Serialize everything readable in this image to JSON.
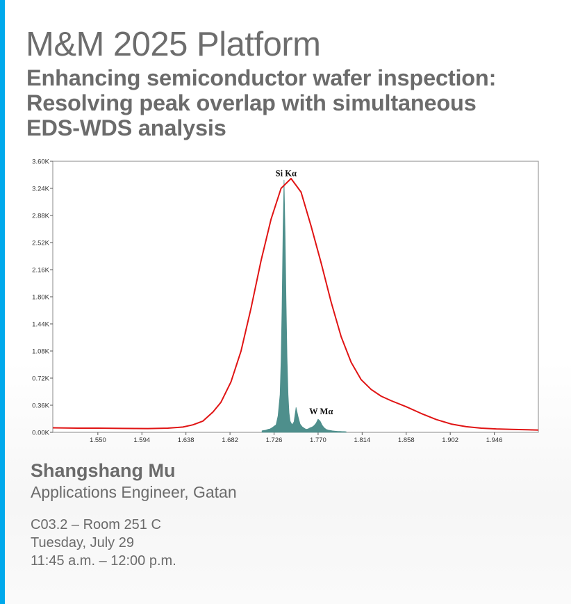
{
  "colors": {
    "accent_bar": "#00a9ec",
    "eds_curve": "#e01414",
    "wds_spectrum": "#4e8f8c",
    "text": "#6b6b6b"
  },
  "header": {
    "event_title": "M&M 2025 Platform",
    "talk_title_lines": [
      "Enhancing semiconductor wafer inspection:",
      "Resolving peak overlap with simultaneous",
      "EDS-WDS analysis"
    ]
  },
  "chart_data": {
    "type": "line",
    "title": "",
    "xlabel": "",
    "ylabel": "",
    "xlim": [
      1.505,
      1.99
    ],
    "ylim": [
      0,
      3600
    ],
    "x_ticks": [
      "1.550",
      "1.594",
      "1.638",
      "1.682",
      "1.726",
      "1.770",
      "1.814",
      "1.858",
      "1.902",
      "1.946"
    ],
    "x_tick_values": [
      1.55,
      1.594,
      1.638,
      1.682,
      1.726,
      1.77,
      1.814,
      1.858,
      1.902,
      1.946
    ],
    "y_ticks": [
      "0.00K",
      "0.36K",
      "0.72K",
      "1.08K",
      "1.44K",
      "1.80K",
      "2.16K",
      "2.52K",
      "2.88K",
      "3.24K",
      "3.60K"
    ],
    "y_tick_values": [
      0,
      360,
      720,
      1080,
      1440,
      1800,
      2160,
      2520,
      2880,
      3240,
      3600
    ],
    "grid": false,
    "legend": "none",
    "annotations": [
      {
        "text": "Si Kα",
        "x": 1.738,
        "y": 3400
      },
      {
        "text": "W Mα",
        "x": 1.773,
        "y": 240
      }
    ],
    "series": [
      {
        "kind": "line",
        "color": "#e01414",
        "x": [
          1.505,
          1.53,
          1.55,
          1.575,
          1.6,
          1.62,
          1.635,
          1.645,
          1.655,
          1.665,
          1.673,
          1.683,
          1.693,
          1.703,
          1.713,
          1.723,
          1.733,
          1.743,
          1.753,
          1.763,
          1.773,
          1.783,
          1.793,
          1.803,
          1.813,
          1.823,
          1.833,
          1.843,
          1.858,
          1.873,
          1.888,
          1.903,
          1.918,
          1.933,
          1.948,
          1.963,
          1.978,
          1.99
        ],
        "y": [
          60,
          55,
          55,
          52,
          50,
          55,
          70,
          100,
          150,
          270,
          400,
          670,
          1080,
          1650,
          2280,
          2830,
          3240,
          3370,
          3190,
          2740,
          2250,
          1730,
          1270,
          930,
          700,
          570,
          480,
          420,
          340,
          250,
          170,
          110,
          75,
          55,
          45,
          40,
          35,
          30
        ]
      },
      {
        "kind": "histogram",
        "color": "#4e8f8c",
        "x": [
          1.714,
          1.716,
          1.718,
          1.72,
          1.722,
          1.724,
          1.726,
          1.728,
          1.73,
          1.732,
          1.733,
          1.734,
          1.735,
          1.736,
          1.737,
          1.738,
          1.739,
          1.74,
          1.741,
          1.742,
          1.744,
          1.746,
          1.748,
          1.75,
          1.752,
          1.754,
          1.756,
          1.758,
          1.76,
          1.762,
          1.764,
          1.766,
          1.768,
          1.77,
          1.772,
          1.774,
          1.776,
          1.778,
          1.78,
          1.782,
          1.784,
          1.786,
          1.788,
          1.79,
          1.792,
          1.794,
          1.796,
          1.798
        ],
        "y": [
          20,
          25,
          30,
          40,
          45,
          60,
          80,
          100,
          220,
          500,
          950,
          1650,
          2700,
          3350,
          2650,
          1750,
          1000,
          500,
          260,
          150,
          100,
          140,
          330,
          210,
          110,
          75,
          55,
          40,
          45,
          60,
          70,
          90,
          120,
          175,
          150,
          95,
          60,
          40,
          30,
          25,
          20,
          18,
          15,
          12,
          12,
          10,
          10,
          8
        ]
      }
    ]
  },
  "speaker": {
    "name": "Shangshang Mu",
    "role": "Applications Engineer, Gatan"
  },
  "session": {
    "code_room": "C03.2 – Room 251 C",
    "date": "Tuesday, July 29",
    "time": "11:45 a.m. – 12:00 p.m."
  }
}
